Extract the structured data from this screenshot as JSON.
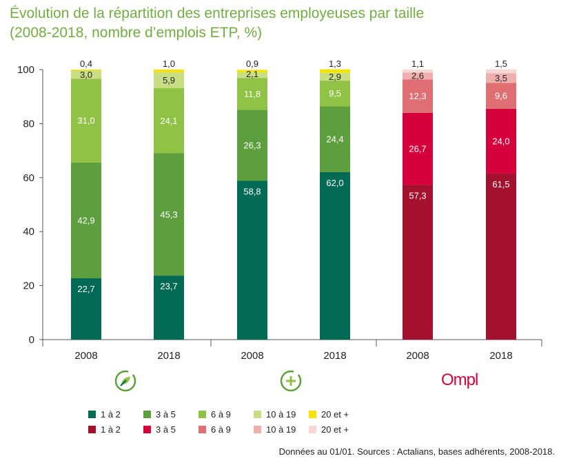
{
  "title_line1": "Évolution de la répartition des entreprises employeuses par taille",
  "title_line2": "(2008-2018, nombre d’emplois ETP, %)",
  "source": "Données au 01/01. Sources : Actalians, bases adhérents, 2008-2018.",
  "brand_label": "Ompl",
  "icons": [
    "leaf-circle-icon",
    "plus-circle-icon",
    "ompl-logo"
  ],
  "colors": {
    "green": [
      "#006a55",
      "#5d9f3e",
      "#8fc245",
      "#c9dd82",
      "#f4e400"
    ],
    "red": [
      "#a4112e",
      "#d5003b",
      "#e06f73",
      "#efafaf",
      "#f7d6d3"
    ],
    "title": "#72ad43"
  },
  "legend": [
    [
      {
        "label": "1 à 2",
        "color": "#006a55"
      },
      {
        "label": "3 à 5",
        "color": "#5d9f3e"
      },
      {
        "label": "6 à 9",
        "color": "#8fc245"
      },
      {
        "label": "10 à 19",
        "color": "#c9dd82"
      },
      {
        "label": "20 et +",
        "color": "#f4e400"
      }
    ],
    [
      {
        "label": "1 à 2",
        "color": "#a4112e"
      },
      {
        "label": "3 à 5",
        "color": "#d5003b"
      },
      {
        "label": "6 à 9",
        "color": "#e06f73"
      },
      {
        "label": "10 à 19",
        "color": "#efafaf"
      },
      {
        "label": "20 et +",
        "color": "#f7d6d3"
      }
    ]
  ],
  "chart_data": {
    "type": "bar",
    "stacked": true,
    "categories": [
      "2008",
      "2018",
      "2008",
      "2018",
      "2008",
      "2018"
    ],
    "ylim": [
      0,
      100
    ],
    "yticks": [
      0,
      20,
      40,
      60,
      80,
      100
    ],
    "series": [
      {
        "values": [
          22.7,
          23.7,
          58.8,
          62.0,
          57.3,
          61.5
        ],
        "labels": [
          "22,7",
          "23,7",
          "58,8",
          "62,0",
          "57,3",
          "61,5"
        ]
      },
      {
        "values": [
          42.9,
          45.3,
          26.3,
          24.4,
          26.7,
          24.0
        ],
        "labels": [
          "42,9",
          "45,3",
          "26,3",
          "24,4",
          "26,7",
          "24,0"
        ]
      },
      {
        "values": [
          31.0,
          24.1,
          11.8,
          9.5,
          12.3,
          9.6
        ],
        "labels": [
          "31,0",
          "24,1",
          "11,8",
          "9,5",
          "12,3",
          "9,6"
        ]
      },
      {
        "values": [
          3.0,
          5.9,
          2.1,
          2.9,
          2.6,
          3.5
        ],
        "labels": [
          "3,0",
          "5,9",
          "2,1",
          "2,9",
          "2,6",
          "3,5"
        ]
      },
      {
        "values": [
          0.4,
          1.0,
          0.9,
          1.3,
          1.1,
          1.5
        ],
        "labels": [
          "0,4",
          "1,0",
          "0,9",
          "1,3",
          "1,1",
          "1,5"
        ]
      }
    ],
    "bar_palette": [
      "green",
      "green",
      "green",
      "green",
      "red",
      "red"
    ]
  }
}
